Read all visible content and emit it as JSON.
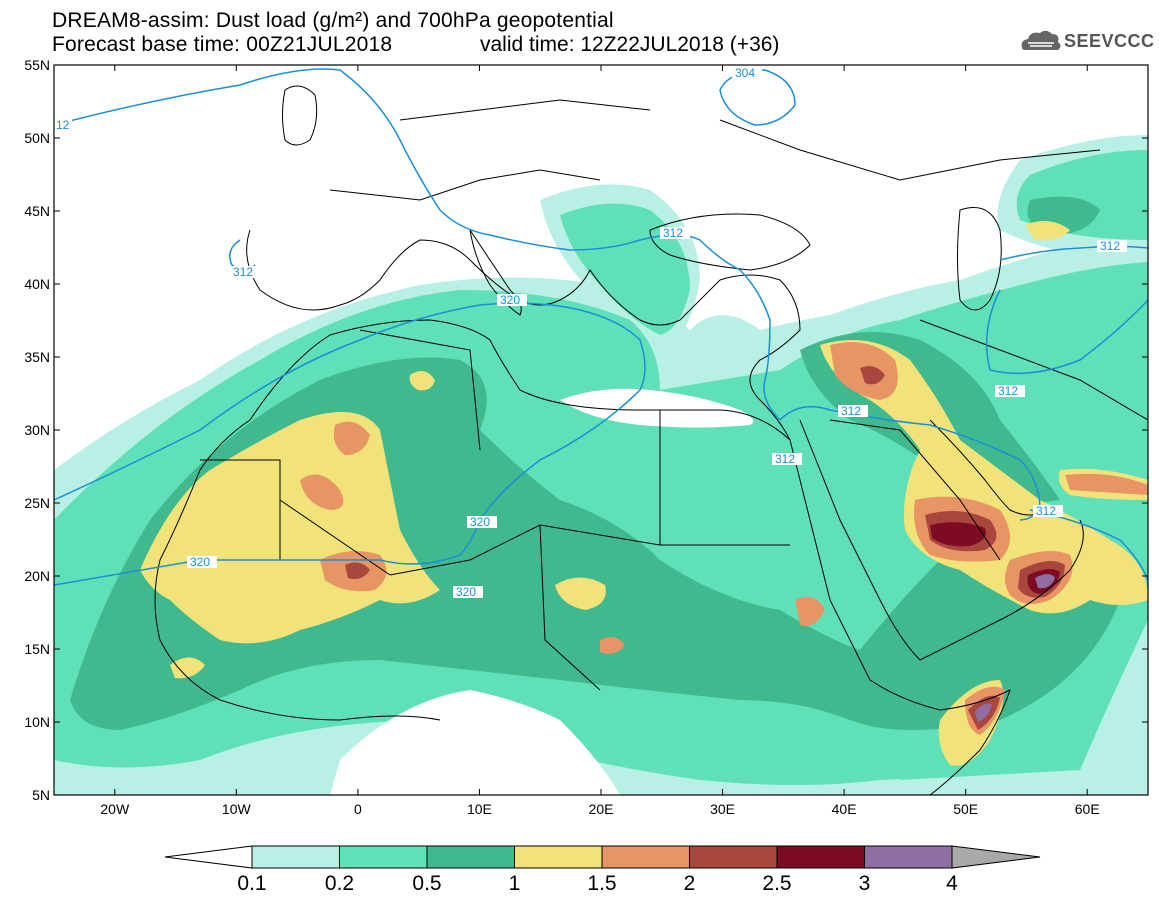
{
  "header": {
    "title_line1": "DREAM8-assim: Dust load (g/m²) and 700hPa geopotential",
    "title_line2": "Forecast base time: 00Z21JUL2018",
    "valid_line": "valid time: 12Z22JUL2018 (+36)"
  },
  "logo": {
    "text": "SEEVCCC",
    "icon": "cloud-logo-icon"
  },
  "axes": {
    "lat_ticks": [
      "55N",
      "50N",
      "45N",
      "40N",
      "35N",
      "30N",
      "25N",
      "20N",
      "15N",
      "10N",
      "5N"
    ],
    "lon_ticks": [
      "20W",
      "10W",
      "0",
      "10E",
      "20E",
      "30E",
      "40E",
      "50E",
      "60E"
    ]
  },
  "colors": {
    "geopotential_contour": "#1a8fd8",
    "coast_border": "#000000",
    "legend_fill": [
      "#b9f0e5",
      "#5fe0b8",
      "#41b98e",
      "#f1e37a",
      "#e89565",
      "#a9463e",
      "#7d0b24",
      "#8f6ea3",
      "#a9a9a9"
    ]
  },
  "legend": {
    "labels": [
      "0.1",
      "0.2",
      "0.5",
      "1",
      "1.5",
      "2",
      "2.5",
      "3",
      "4"
    ]
  },
  "contour_labels": [
    {
      "text": "12"
    },
    {
      "text": "304"
    },
    {
      "text": "312"
    },
    {
      "text": "312"
    },
    {
      "text": "320"
    },
    {
      "text": "312"
    },
    {
      "text": "312"
    },
    {
      "text": "312"
    },
    {
      "text": "320"
    },
    {
      "text": "320"
    },
    {
      "text": "320"
    },
    {
      "text": "312"
    },
    {
      "text": "312"
    }
  ]
}
